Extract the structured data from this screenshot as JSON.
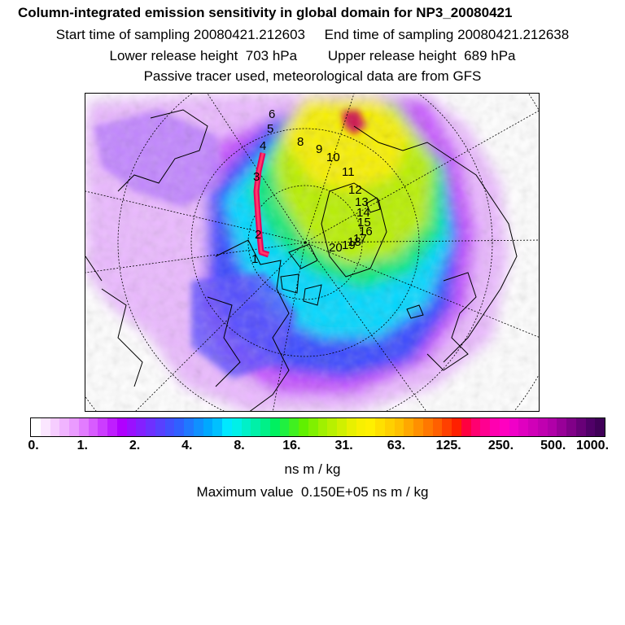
{
  "header": {
    "title": "Column-integrated emission sensitivity in global domain for NP3_20080421",
    "start_label": "Start time of sampling 20080421.212603",
    "end_label": "End time of sampling 20080421.212638",
    "lower_label": "Lower release height  703 hPa",
    "upper_label": "Upper release height  689 hPa",
    "tracer_note": "Passive tracer used, meteorological data are from GFS"
  },
  "map": {
    "projection": "polar stereographic (north)",
    "trajectory_labels": [
      "1",
      "2",
      "3",
      "4",
      "5",
      "6",
      "8",
      "9",
      "10",
      "11",
      "12",
      "13",
      "14",
      "15",
      "16",
      "17",
      "18",
      "19",
      "20"
    ],
    "colors": {
      "ocean_bg": "#ffffff",
      "trajectory": "#e8005a",
      "coastline": "#000000"
    }
  },
  "colorbar": {
    "tick_labels": [
      "0.",
      "1.",
      "2.",
      "4.",
      "8.",
      "16.",
      "31.",
      "63.",
      "125.",
      "250.",
      "500.",
      "1000."
    ],
    "segment_colors": [
      "#ffffff",
      "#fbe6ff",
      "#f6cdff",
      "#f0b4ff",
      "#ea9bff",
      "#e27cff",
      "#d85cff",
      "#cc3dff",
      "#bf1eff",
      "#b000ff",
      "#9a10ff",
      "#8420ff",
      "#6e30ff",
      "#5840ff",
      "#4250ff",
      "#3060ff",
      "#2078ff",
      "#1090ff",
      "#00a8ff",
      "#00c0ff",
      "#00e8ff",
      "#00f0e8",
      "#00f0c8",
      "#00f0a8",
      "#00f088",
      "#00f060",
      "#20f040",
      "#40f020",
      "#60f000",
      "#80f000",
      "#a0f000",
      "#b8f000",
      "#d0f000",
      "#e8f000",
      "#f8f000",
      "#fff000",
      "#ffe000",
      "#ffd000",
      "#ffc000",
      "#ffa800",
      "#ff9000",
      "#ff7800",
      "#ff6000",
      "#ff4000",
      "#ff2000",
      "#ff0040",
      "#ff0070",
      "#ff0090",
      "#ff00b0",
      "#ff00c0",
      "#f000c8",
      "#e000c0",
      "#d000b8",
      "#c000b0",
      "#b000a8",
      "#980098",
      "#800088",
      "#680078",
      "#500068",
      "#400058"
    ],
    "units": "ns m / kg"
  },
  "footer": {
    "max_value": "Maximum value  0.150E+05 ns m / kg"
  }
}
